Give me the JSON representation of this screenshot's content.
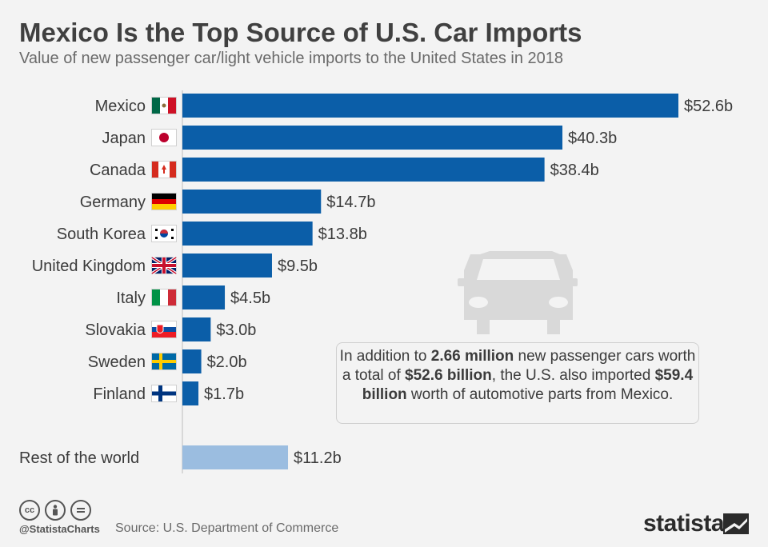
{
  "title": "Mexico Is the Top Source of U.S. Car Imports",
  "subtitle": "Value of new passenger car/light vehicle imports to the United States in 2018",
  "chart_data": {
    "type": "bar",
    "orientation": "horizontal",
    "title": "Mexico Is the Top Source of U.S. Car Imports",
    "xlabel": "",
    "ylabel": "",
    "unit": "billion USD",
    "xlim": [
      0,
      52.6
    ],
    "categories": [
      "Mexico",
      "Japan",
      "Canada",
      "Germany",
      "South Korea",
      "United Kingdom",
      "Italy",
      "Slovakia",
      "Sweden",
      "Finland",
      "Rest of the world"
    ],
    "values": [
      52.6,
      40.3,
      38.4,
      14.7,
      13.8,
      9.5,
      4.5,
      3.0,
      2.0,
      1.7,
      11.2
    ],
    "value_labels": [
      "$52.6b",
      "$40.3b",
      "$38.4b",
      "$14.7b",
      "$13.8b",
      "$9.5b",
      "$4.5b",
      "$3.0b",
      "$2.0b",
      "$1.7b",
      "$11.2b"
    ],
    "flags": [
      "mexico-flag",
      "japan-flag",
      "canada-flag",
      "germany-flag",
      "south-korea-flag",
      "united-kingdom-flag",
      "italy-flag",
      "slovakia-flag",
      "sweden-flag",
      "finland-flag",
      null
    ],
    "colors": {
      "bar": "#0b5ea8",
      "rest": "#9bbde0"
    }
  },
  "note": {
    "prefix": "In addition to ",
    "bold1": "2.66 million",
    "mid1": " new passenger cars worth a total of ",
    "bold2": "$52.6 billion",
    "mid2": ", the U.S. also imported ",
    "bold3": "$59.4 billion",
    "suffix": " worth of automotive parts from Mexico."
  },
  "footer": {
    "handle": "@StatistaCharts",
    "source": "Source: U.S. Department of Commerce",
    "brand": "statista",
    "icons": [
      "cc-icon",
      "by-icon",
      "nd-icon"
    ]
  }
}
